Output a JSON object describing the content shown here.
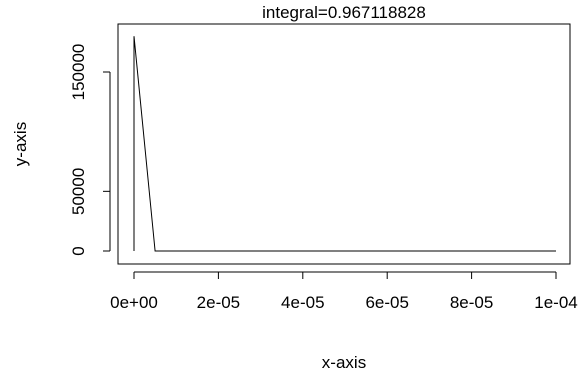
{
  "chart_data": {
    "type": "line",
    "title": "integral=0.967118828",
    "xlabel": "x-axis",
    "ylabel": "y-axis",
    "xlim": [
      0,
      0.000102
    ],
    "ylim": [
      -5000,
      185000
    ],
    "x_ticks": [
      0,
      2e-05,
      4e-05,
      6e-05,
      8e-05,
      0.0001
    ],
    "x_tick_labels": [
      "0e+00",
      "2e-05",
      "4e-05",
      "6e-05",
      "8e-05",
      "1e-04"
    ],
    "y_ticks": [
      0,
      50000,
      150000
    ],
    "y_tick_labels": [
      "0",
      "50000",
      "150000"
    ],
    "grid": false,
    "series": [
      {
        "color": "#000000",
        "x": [
          0,
          0,
          5e-06,
          0.0001
        ],
        "y": [
          0,
          180000,
          0,
          0
        ]
      }
    ]
  }
}
